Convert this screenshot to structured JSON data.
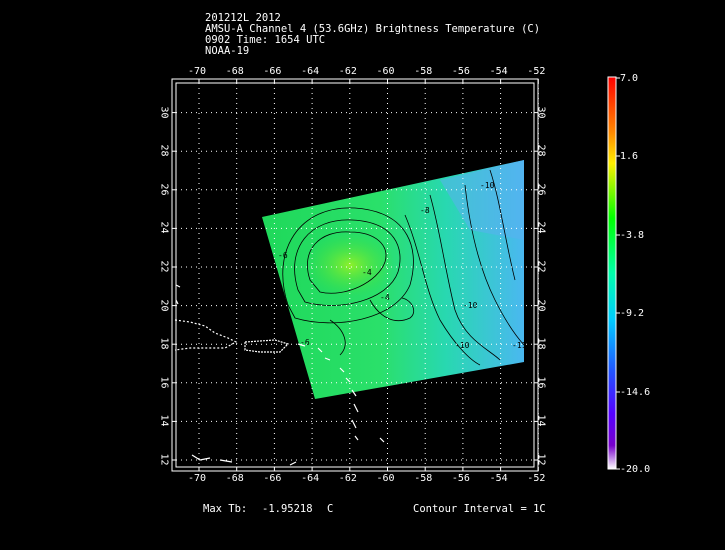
{
  "header": {
    "line1": "201212L 2012",
    "line2": "AMSU-A Channel 4 (53.6GHz) Brightness Temperature (C)",
    "line3": "0902 Time: 1654 UTC",
    "line4": "NOAA-19"
  },
  "axes": {
    "lon_ticks": [
      "-70",
      "-68",
      "-66",
      "-64",
      "-62",
      "-60",
      "-58",
      "-56",
      "-54",
      "-52"
    ],
    "lat_ticks": [
      "12",
      "14",
      "16",
      "18",
      "20",
      "22",
      "24",
      "26",
      "28",
      "30"
    ]
  },
  "contour_labels": [
    "-10",
    "-8",
    "-6",
    "-4",
    "-4",
    "-6",
    "-10",
    "-10",
    "-11"
  ],
  "colorbar": {
    "labels": [
      "7.0",
      "1.6",
      "-3.8",
      "-9.2",
      "-14.6",
      "-20.0"
    ],
    "colors": [
      "#ff0000",
      "#ffaa00",
      "#ffff00",
      "#00ff00",
      "#00ffcc",
      "#00ccff",
      "#3366ff",
      "#6600ff",
      "#ffffff"
    ]
  },
  "footer": {
    "max_label": "Max Tb:",
    "max_value": "-1.95218",
    "max_unit": "C",
    "contour": "Contour Interval = 1C"
  }
}
